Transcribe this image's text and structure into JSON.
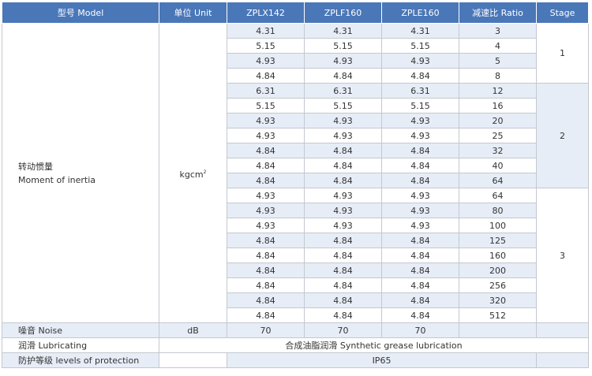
{
  "header": [
    "型号 Model",
    "单位 Unit",
    "ZPLX142",
    "ZPLF160",
    "ZPLE160",
    "减速比 Ratio",
    "Stage"
  ],
  "inertia": {
    "label_cn": "转动惯量",
    "label_en": "Moment of inertia",
    "unit": "kgcm",
    "unit_sup": "2",
    "rows": [
      [
        "4.31",
        "4.31",
        "4.31",
        "3"
      ],
      [
        "5.15",
        "5.15",
        "5.15",
        "4"
      ],
      [
        "4.93",
        "4.93",
        "4.93",
        "5"
      ],
      [
        "4.84",
        "4.84",
        "4.84",
        "8"
      ],
      [
        "6.31",
        "6.31",
        "6.31",
        "12"
      ],
      [
        "5.15",
        "5.15",
        "5.15",
        "16"
      ],
      [
        "4.93",
        "4.93",
        "4.93",
        "20"
      ],
      [
        "4.93",
        "4.93",
        "4.93",
        "25"
      ],
      [
        "4.84",
        "4.84",
        "4.84",
        "32"
      ],
      [
        "4.84",
        "4.84",
        "4.84",
        "40"
      ],
      [
        "4.84",
        "4.84",
        "4.84",
        "64"
      ],
      [
        "4.93",
        "4.93",
        "4.93",
        "64"
      ],
      [
        "4.93",
        "4.93",
        "4.93",
        "80"
      ],
      [
        "4.93",
        "4.93",
        "4.93",
        "100"
      ],
      [
        "4.84",
        "4.84",
        "4.84",
        "125"
      ],
      [
        "4.84",
        "4.84",
        "4.84",
        "160"
      ],
      [
        "4.84",
        "4.84",
        "4.84",
        "200"
      ],
      [
        "4.84",
        "4.84",
        "4.84",
        "256"
      ],
      [
        "4.84",
        "4.84",
        "4.84",
        "320"
      ],
      [
        "4.84",
        "4.84",
        "4.84",
        "512"
      ]
    ],
    "stages": [
      "1",
      "2",
      "3"
    ]
  },
  "noise": {
    "label": "噪音 Noise",
    "unit": "dB",
    "values": [
      "70",
      "70",
      "70"
    ]
  },
  "lubricating": {
    "label": "润滑 Lubricating",
    "value": "合成油脂润滑 Synthetic grease lubrication"
  },
  "protection": {
    "label": "防护等级 levels of protection",
    "value": "IP65"
  },
  "colors": {
    "header_bg": "#4a77b8",
    "light_blue": "#e7edf7",
    "border": "#c3c8d0"
  }
}
